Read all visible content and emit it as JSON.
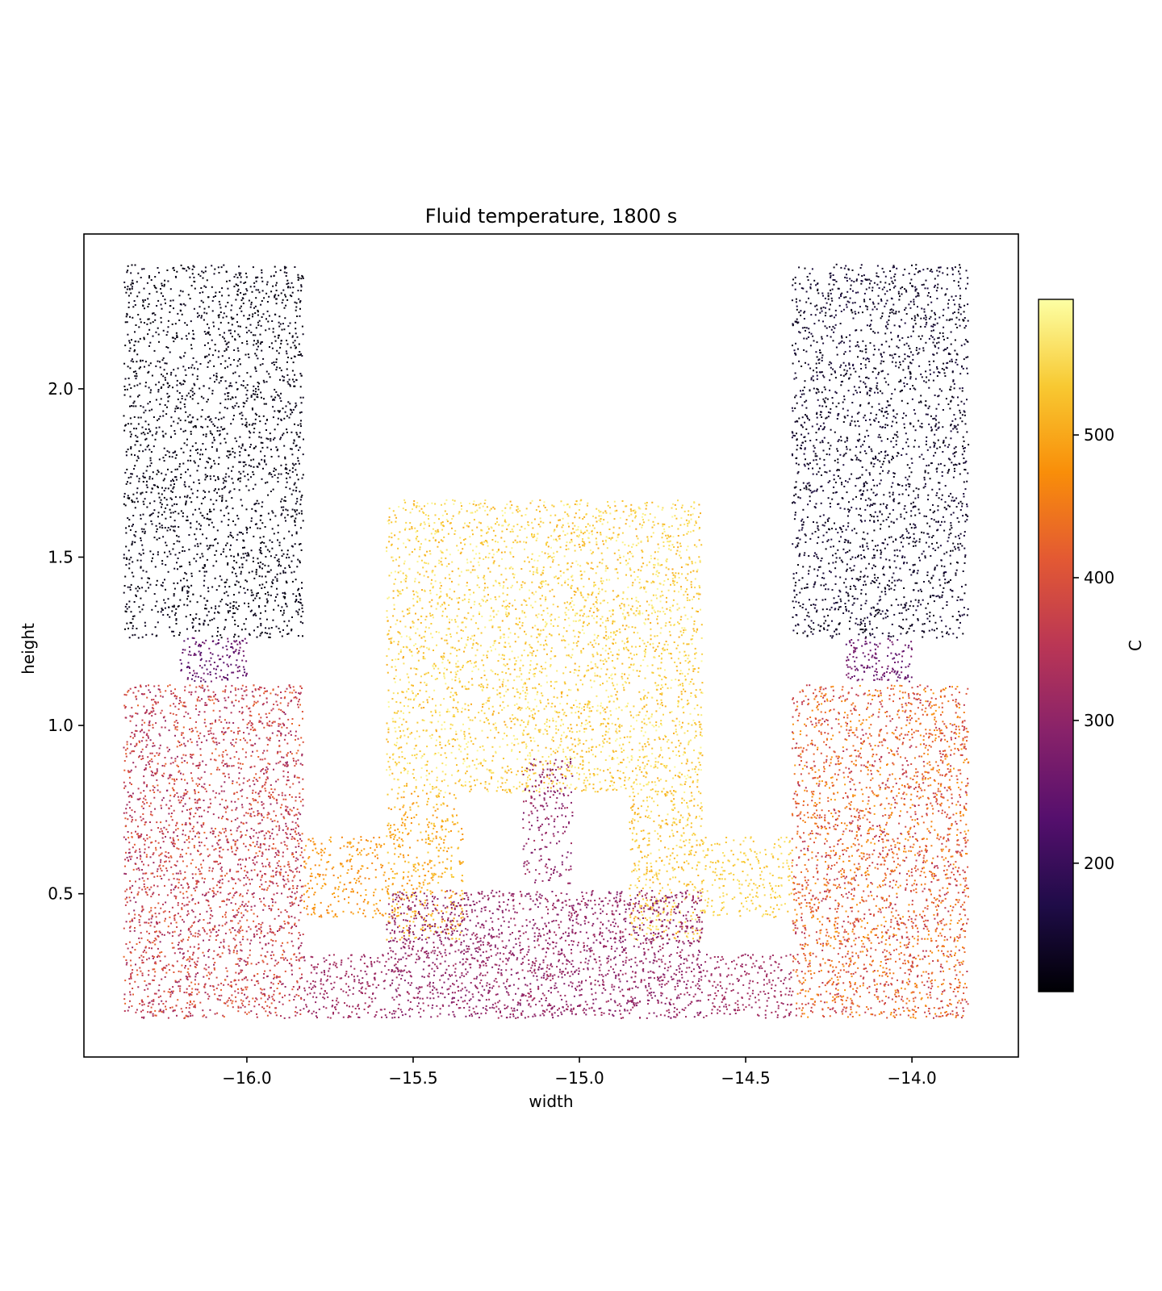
{
  "chart_data": {
    "type": "scatter",
    "title": "Fluid temperature, 1800 s",
    "xlabel": "width",
    "ylabel": "height",
    "xlim": [
      -16.49,
      -13.68
    ],
    "ylim": [
      0.015,
      2.46
    ],
    "xticks": [
      -16.0,
      -15.5,
      -15.0,
      -14.5,
      -14.0
    ],
    "xtick_labels": [
      "−16.0",
      "−15.5",
      "−15.0",
      "−14.5",
      "−14.0"
    ],
    "yticks": [
      0.5,
      1.0,
      1.5,
      2.0
    ],
    "ytick_labels": [
      "0.5",
      "1.0",
      "1.5",
      "2.0"
    ],
    "colorbar": {
      "label": "C",
      "colormap": "inferno",
      "range": [
        110,
        595
      ],
      "ticks": [
        200,
        300,
        400,
        500
      ],
      "tick_labels": [
        "200",
        "300",
        "400",
        "500"
      ]
    },
    "grid": false,
    "legend": "none",
    "point_color_rule": "temperature mapped through colormap",
    "regions": [
      {
        "name": "left upper tank",
        "x": [
          -16.37,
          -15.83
        ],
        "y": [
          1.26,
          2.37
        ],
        "temp": [
          112,
          138
        ],
        "n": 2300
      },
      {
        "name": "left neck",
        "x": [
          -16.2,
          -16.0
        ],
        "y": [
          1.13,
          1.26
        ],
        "temp": [
          215,
          275
        ],
        "n": 150
      },
      {
        "name": "left lower tank",
        "x": [
          -16.37,
          -15.83
        ],
        "y": [
          0.13,
          1.12
        ],
        "temp": [
          305,
          430
        ],
        "n": 2700
      },
      {
        "name": "left upper bridge",
        "x": [
          -15.83,
          -15.58
        ],
        "y": [
          0.43,
          0.67
        ],
        "temp": [
          455,
          505
        ],
        "n": 240
      },
      {
        "name": "left lower bridge",
        "x": [
          -15.83,
          -15.58
        ],
        "y": [
          0.13,
          0.32
        ],
        "temp": [
          300,
          335
        ],
        "n": 220
      },
      {
        "name": "center upper block",
        "x": [
          -15.58,
          -14.63
        ],
        "y": [
          0.8,
          1.67
        ],
        "temp": [
          500,
          590
        ],
        "n": 3400
      },
      {
        "name": "center left column",
        "x": [
          -15.58,
          -15.35
        ],
        "y": [
          0.36,
          0.8
        ],
        "temp": [
          470,
          540
        ],
        "n": 420
      },
      {
        "name": "center right column",
        "x": [
          -14.85,
          -14.63
        ],
        "y": [
          0.36,
          0.8
        ],
        "temp": [
          495,
          575
        ],
        "n": 420
      },
      {
        "name": "center slot",
        "x": [
          -15.17,
          -15.02
        ],
        "y": [
          0.53,
          0.9
        ],
        "temp": [
          275,
          330
        ],
        "n": 210
      },
      {
        "name": "center lower block",
        "x": [
          -15.58,
          -14.63
        ],
        "y": [
          0.13,
          0.51
        ],
        "temp": [
          280,
          330
        ],
        "n": 2000
      },
      {
        "name": "right upper bridge",
        "x": [
          -14.63,
          -14.36
        ],
        "y": [
          0.43,
          0.67
        ],
        "temp": [
          520,
          565
        ],
        "n": 240
      },
      {
        "name": "right lower bridge",
        "x": [
          -14.63,
          -14.36
        ],
        "y": [
          0.13,
          0.32
        ],
        "temp": [
          305,
          335
        ],
        "n": 220
      },
      {
        "name": "right upper tank",
        "x": [
          -14.36,
          -13.83
        ],
        "y": [
          1.26,
          2.37
        ],
        "temp": [
          118,
          165
        ],
        "n": 2300
      },
      {
        "name": "right neck",
        "x": [
          -14.2,
          -14.0
        ],
        "y": [
          1.13,
          1.26
        ],
        "temp": [
          230,
          285
        ],
        "n": 150
      },
      {
        "name": "right lower tank",
        "x": [
          -14.36,
          -13.83
        ],
        "y": [
          0.13,
          1.12
        ],
        "temp": [
          340,
          490
        ],
        "n": 2700
      }
    ]
  }
}
